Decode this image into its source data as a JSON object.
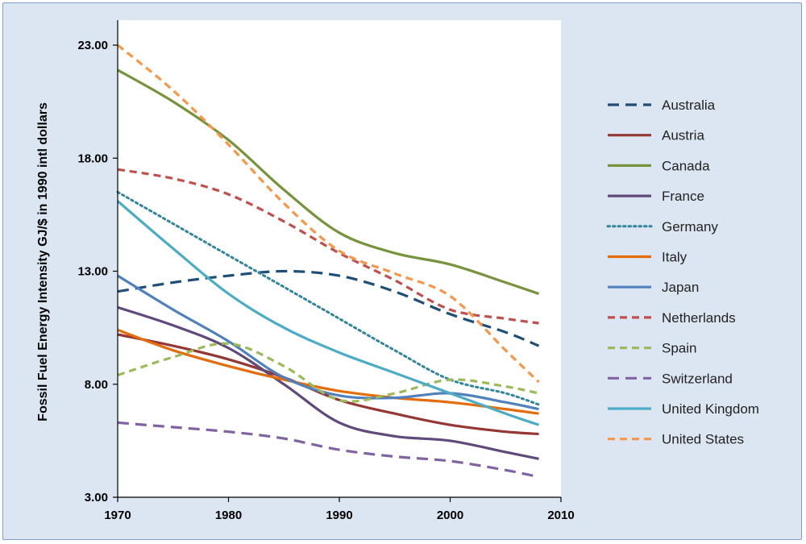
{
  "chart_data": {
    "type": "line",
    "title": "",
    "xlabel": "",
    "ylabel": "Fossil Fuel Energy Intensity  GJ/$ in 1990 intl dollars",
    "xlim": [
      1970,
      2010
    ],
    "ylim": [
      3,
      24
    ],
    "x_ticks": [
      1970,
      1980,
      1990,
      2000,
      2010
    ],
    "x_tick_labels": [
      "1970",
      "1980",
      "1990",
      "2000",
      "2010"
    ],
    "y_ticks": [
      3,
      8,
      13,
      18,
      23
    ],
    "y_tick_labels": [
      "3.00",
      "8.00",
      "13.00",
      "18.00",
      "23.00"
    ],
    "grid": false,
    "legend_position": "right",
    "x": [
      1970,
      1975,
      1980,
      1985,
      1990,
      1995,
      2000,
      2005,
      2008
    ],
    "series": [
      {
        "name": "Australia",
        "color": "#1f4e79",
        "dash": "long-dash",
        "values": [
          12.1,
          12.5,
          12.8,
          13.0,
          12.8,
          12.1,
          11.1,
          10.3,
          9.7
        ]
      },
      {
        "name": "Austria",
        "color": "#953735",
        "dash": "solid",
        "values": [
          10.2,
          9.7,
          9.1,
          8.3,
          7.3,
          6.7,
          6.2,
          5.9,
          5.8
        ]
      },
      {
        "name": "Canada",
        "color": "#77933c",
        "dash": "solid",
        "values": [
          21.9,
          20.5,
          18.8,
          16.6,
          14.7,
          13.8,
          13.3,
          12.5,
          12.0
        ]
      },
      {
        "name": "France",
        "color": "#604a7b",
        "dash": "solid",
        "values": [
          11.4,
          10.6,
          9.6,
          8.0,
          6.3,
          5.7,
          5.5,
          5.0,
          4.7
        ]
      },
      {
        "name": "Germany",
        "color": "#31859c",
        "dash": "dotted",
        "values": [
          16.5,
          15.1,
          13.7,
          12.3,
          10.9,
          9.5,
          8.2,
          7.6,
          7.1
        ]
      },
      {
        "name": "Italy",
        "color": "#e46c0a",
        "dash": "solid",
        "values": [
          10.4,
          9.5,
          8.8,
          8.2,
          7.7,
          7.4,
          7.2,
          6.9,
          6.7
        ]
      },
      {
        "name": "Japan",
        "color": "#4f81bd",
        "dash": "solid",
        "values": [
          12.8,
          11.3,
          9.9,
          8.3,
          7.5,
          7.4,
          7.6,
          7.2,
          6.9
        ]
      },
      {
        "name": "Netherlands",
        "color": "#c0504d",
        "dash": "short-dash",
        "values": [
          17.5,
          17.1,
          16.4,
          15.2,
          13.8,
          12.6,
          11.3,
          10.9,
          10.7
        ]
      },
      {
        "name": "Spain",
        "color": "#9bbb59",
        "dash": "short-dash",
        "values": [
          8.4,
          9.2,
          9.8,
          8.8,
          7.3,
          7.6,
          8.2,
          7.9,
          7.6
        ]
      },
      {
        "name": "Switzerland",
        "color": "#8064a2",
        "dash": "long-dash",
        "values": [
          6.3,
          6.1,
          5.9,
          5.6,
          5.1,
          4.8,
          4.6,
          4.2,
          3.9
        ]
      },
      {
        "name": "United Kingdom",
        "color": "#4bacc6",
        "dash": "solid",
        "values": [
          16.1,
          14.0,
          12.0,
          10.5,
          9.4,
          8.5,
          7.6,
          6.7,
          6.2
        ]
      },
      {
        "name": "United States",
        "color": "#f79646",
        "dash": "short-dash",
        "values": [
          23.0,
          21.0,
          18.6,
          16.0,
          13.9,
          12.9,
          11.9,
          9.5,
          8.1
        ]
      }
    ]
  }
}
